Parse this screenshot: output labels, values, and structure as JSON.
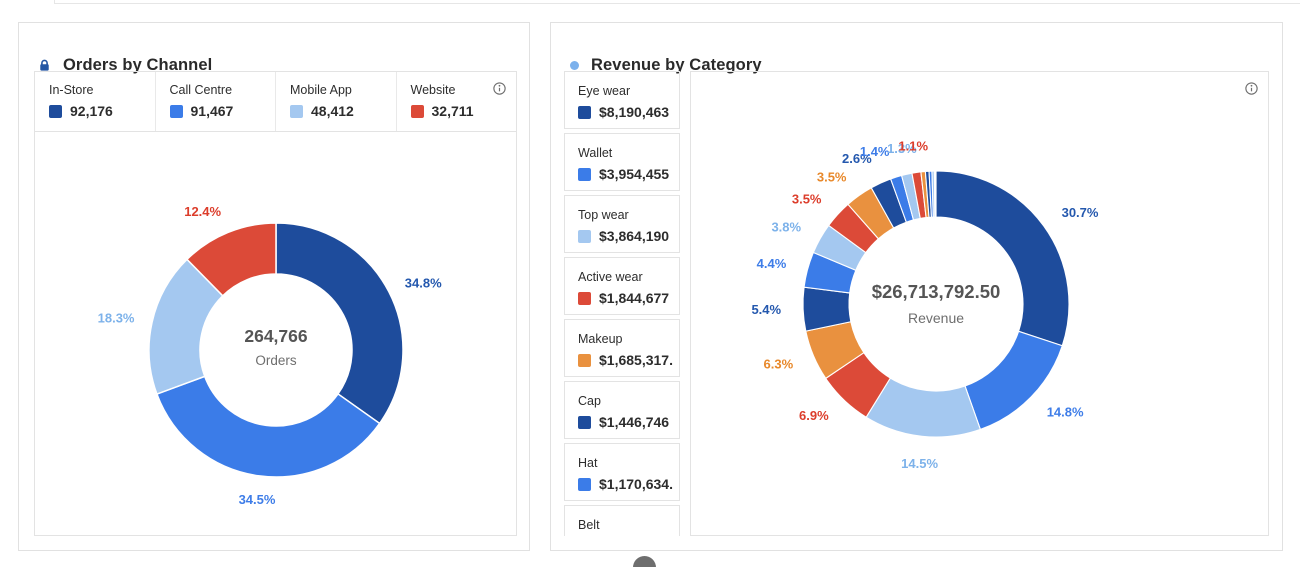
{
  "palette": {
    "colors": {
      "navy": "#1e4c9c",
      "blue": "#3b7ce8",
      "light_blue": "#a4c8f0",
      "red": "#dc4a38",
      "orange": "#e9913f"
    },
    "label_colors": {
      "navy": "#2458ae",
      "blue": "#3e7de8",
      "light_blue": "#7db2ea",
      "red": "#dc3d2b",
      "orange": "#e8882a"
    },
    "center_value_color": "#555555",
    "center_label_color": "#6e6e6e"
  },
  "chart_data": [
    {
      "type": "pie",
      "variant": "donut",
      "title": "Orders by Channel",
      "title_icon": "lock",
      "legend_position": "top",
      "center_value": "264,766",
      "center_label": "Orders",
      "slices": [
        {
          "name": "In-Store",
          "value": 92176,
          "value_label": "92,176",
          "pct_label": "34.8%",
          "color": "navy"
        },
        {
          "name": "Call Centre",
          "value": 91467,
          "value_label": "91,467",
          "pct_label": "34.5%",
          "color": "blue"
        },
        {
          "name": "Mobile App",
          "value": 48412,
          "value_label": "48,412",
          "pct_label": "18.3%",
          "color": "light_blue"
        },
        {
          "name": "Website",
          "value": 32711,
          "value_label": "32,711",
          "pct_label": "12.4%",
          "color": "red"
        }
      ]
    },
    {
      "type": "pie",
      "variant": "donut",
      "title": "Revenue by Category",
      "title_icon": "dot",
      "legend_position": "left",
      "center_value": "$26,713,792.50",
      "center_label": "Revenue",
      "slices": [
        {
          "name": "Eye wear",
          "value": 30.7,
          "value_label": "$8,190,463",
          "pct_label": "30.7%",
          "color": "navy"
        },
        {
          "name": "Wallet",
          "value": 14.8,
          "value_label": "$3,954,455",
          "pct_label": "14.8%",
          "color": "blue"
        },
        {
          "name": "Top wear",
          "value": 14.5,
          "value_label": "$3,864,190",
          "pct_label": "14.5%",
          "color": "light_blue"
        },
        {
          "name": "Active wear",
          "value": 6.9,
          "value_label": "$1,844,677",
          "pct_label": "6.9%",
          "color": "red"
        },
        {
          "name": "Makeup",
          "value": 6.3,
          "value_label": "$1,685,317.",
          "pct_label": "6.3%",
          "color": "orange"
        },
        {
          "name": "Cap",
          "value": 5.4,
          "value_label": "$1,446,746",
          "pct_label": "5.4%",
          "color": "navy"
        },
        {
          "name": "Hat",
          "value": 4.4,
          "value_label": "$1,170,634.",
          "pct_label": "4.4%",
          "color": "blue"
        },
        {
          "name": "Belt",
          "value": 3.8,
          "value_label": "",
          "pct_label": "3.8%",
          "color": "light_blue"
        },
        {
          "name": "",
          "value": 3.5,
          "value_label": "",
          "pct_label": "3.5%",
          "color": "red"
        },
        {
          "name": "",
          "value": 3.5,
          "value_label": "",
          "pct_label": "3.5%",
          "color": "orange"
        },
        {
          "name": "",
          "value": 2.6,
          "value_label": "",
          "pct_label": "2.6%",
          "color": "navy"
        },
        {
          "name": "",
          "value": 1.4,
          "value_label": "",
          "pct_label": "1.4%",
          "color": "blue"
        },
        {
          "name": "",
          "value": 1.3,
          "value_label": "",
          "pct_label": "1.3%",
          "color": "light_blue"
        },
        {
          "name": "",
          "value": 1.1,
          "value_label": "",
          "pct_label": "1.1%",
          "color": "red"
        },
        {
          "name": "",
          "value": 0.55,
          "value_label": "",
          "pct_label": "",
          "color": "orange"
        },
        {
          "name": "",
          "value": 0.45,
          "value_label": "",
          "pct_label": "",
          "color": "navy"
        },
        {
          "name": "",
          "value": 0.35,
          "value_label": "",
          "pct_label": "",
          "color": "blue"
        },
        {
          "name": "",
          "value": 0.3,
          "value_label": "",
          "pct_label": "",
          "color": "light_blue"
        },
        {
          "name": "",
          "value": 0.12,
          "value_label": "",
          "pct_label": "",
          "color": "red"
        },
        {
          "name": "",
          "value": 0.08,
          "value_label": "",
          "pct_label": "",
          "color": "orange"
        }
      ]
    }
  ]
}
